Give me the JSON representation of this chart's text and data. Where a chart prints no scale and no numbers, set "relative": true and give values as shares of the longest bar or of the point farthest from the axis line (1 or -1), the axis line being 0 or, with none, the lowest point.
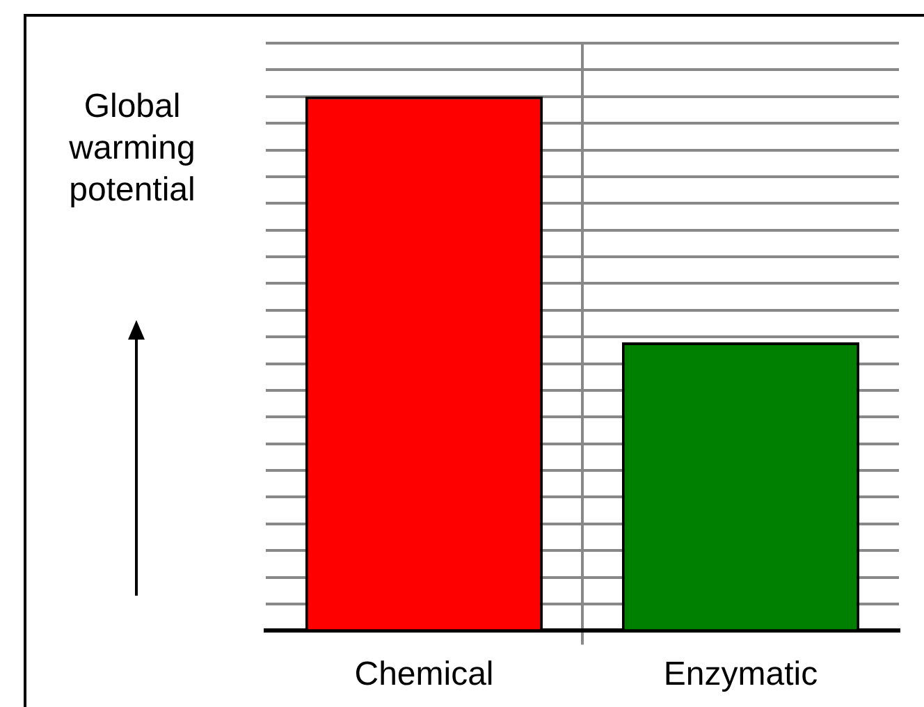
{
  "chart_data": {
    "type": "bar",
    "ylabel": "Global warming potential",
    "relative": true,
    "grid": true,
    "categories": [
      "Chemical",
      "Enzymatic"
    ],
    "values": [
      1,
      0.54
    ],
    "colors": [
      "#ff0000",
      "#008000"
    ]
  }
}
